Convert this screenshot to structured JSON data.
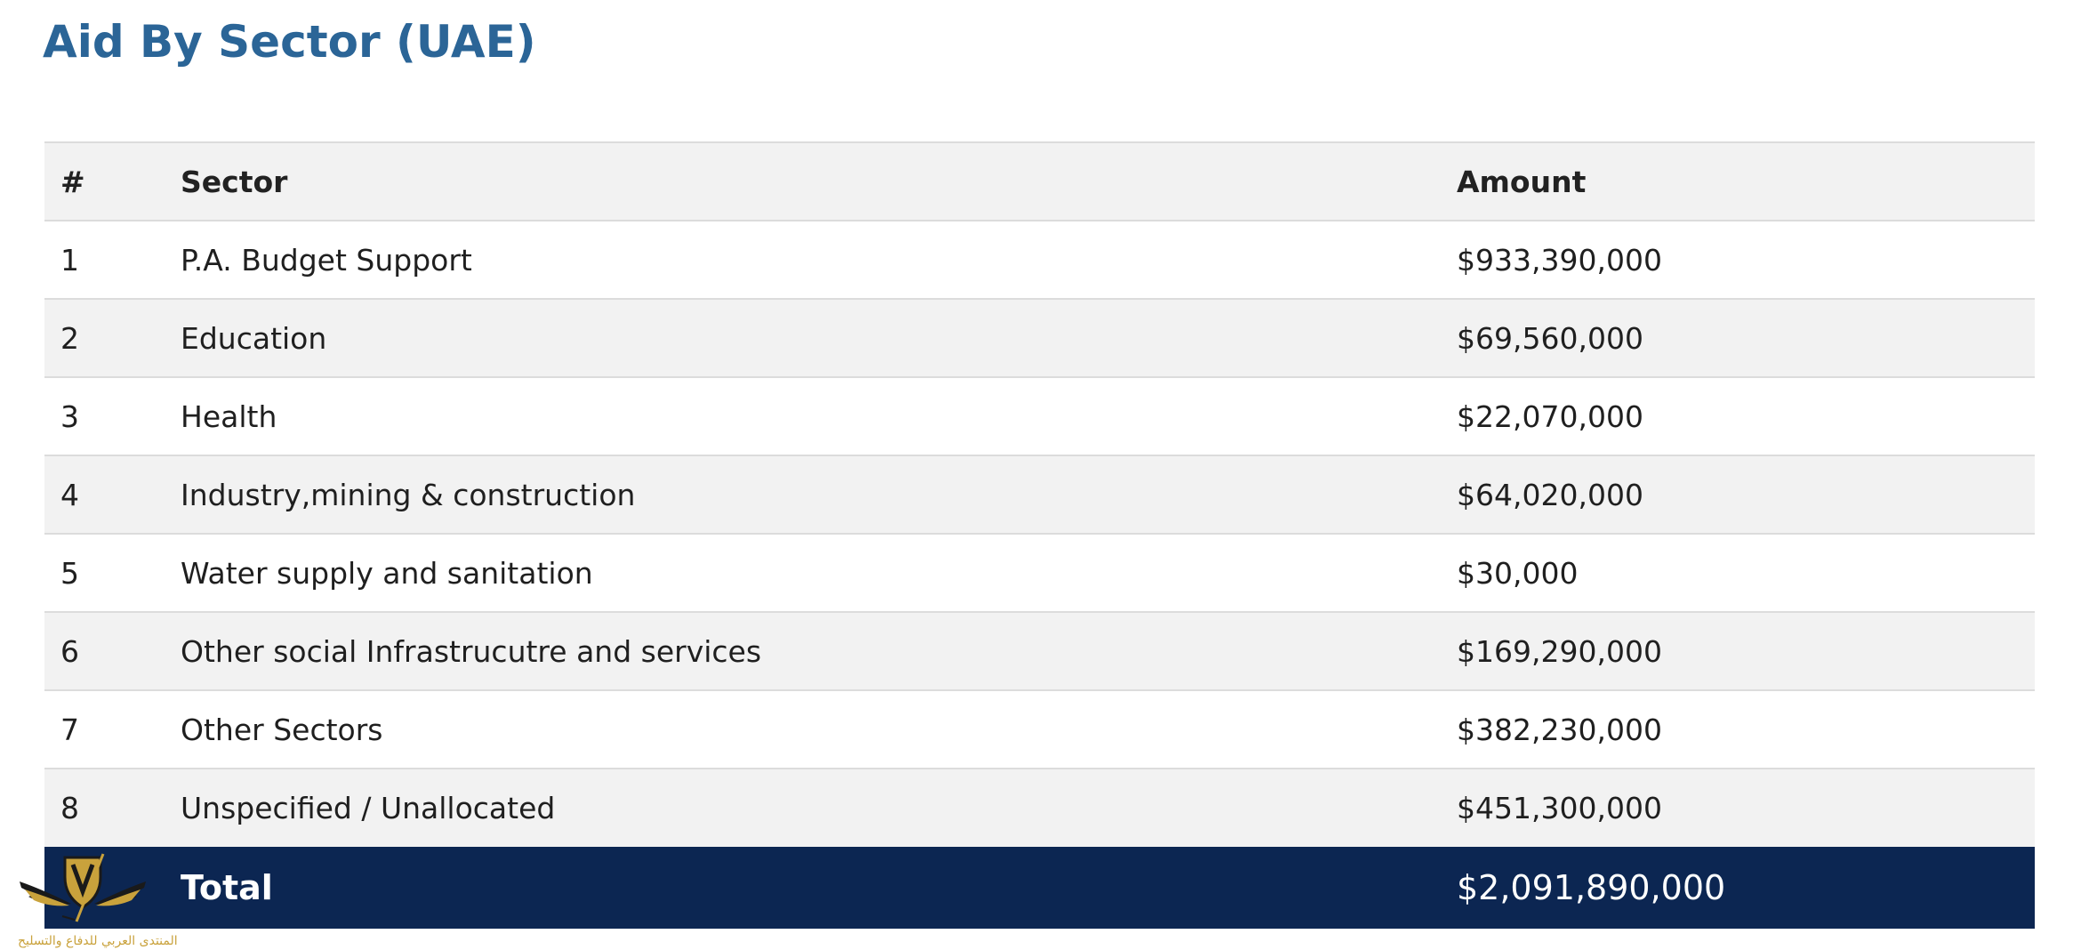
{
  "page": {
    "title": "Aid By Sector (UAE)"
  },
  "table": {
    "headers": {
      "num": "#",
      "sector": "Sector",
      "amount": "Amount"
    },
    "rows": [
      {
        "num": "1",
        "sector": "P.A. Budget Support",
        "amount": "$933,390,000"
      },
      {
        "num": "2",
        "sector": "Education",
        "amount": "$69,560,000"
      },
      {
        "num": "3",
        "sector": "Health",
        "amount": "$22,070,000"
      },
      {
        "num": "4",
        "sector": "Industry,mining & construction",
        "amount": "$64,020,000"
      },
      {
        "num": "5",
        "sector": "Water supply and sanitation",
        "amount": "$30,000"
      },
      {
        "num": "6",
        "sector": "Other social Infrastrucutre and services",
        "amount": "$169,290,000"
      },
      {
        "num": "7",
        "sector": "Other Sectors",
        "amount": "$382,230,000"
      },
      {
        "num": "8",
        "sector": "Unspecified / Unallocated",
        "amount": "$451,300,000"
      }
    ],
    "total": {
      "label": "Total",
      "amount": "$2,091,890,000"
    }
  },
  "watermark": {
    "icon": "shield-wings-logo-icon",
    "caption": "المنتدى العربي للدفاع والتسليح",
    "colors": {
      "gold": "#c9a23c",
      "dark": "#1a1a1a"
    }
  },
  "colors": {
    "title": "#2b6597",
    "header_bg": "#f2f2f2",
    "stripe_bg": "#f2f2f2",
    "total_bg": "#0c2652",
    "total_text": "#ffffff"
  }
}
